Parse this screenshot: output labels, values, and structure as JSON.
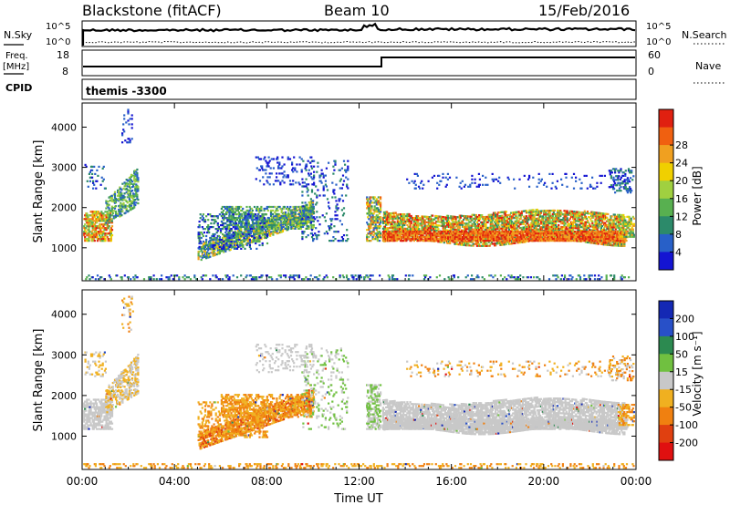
{
  "header": {
    "station": "Blackstone (fitACF)",
    "beam": "Beam 10",
    "date": "15/Feb/2016"
  },
  "left_labels": {
    "nsky": "N.Sky",
    "freq": "Freq.",
    "mhz": "[MHz]",
    "cpid": "CPID"
  },
  "right_labels": {
    "nsearch": "N.Search",
    "nave": "Nave"
  },
  "cpid_text": "themis -3300",
  "power_colorbar": {
    "title": "Power [dB]",
    "ticks": [
      "4",
      "8",
      "12",
      "16",
      "20",
      "24",
      "28"
    ],
    "colors": [
      "#1414d2",
      "#2860c8",
      "#2c8a6a",
      "#58b050",
      "#a0d040",
      "#f0d000",
      "#f0a020",
      "#f06010",
      "#e02010"
    ]
  },
  "velocity_colorbar": {
    "title": "Velocity [m s⁻¹]",
    "ticks": [
      "200",
      "100",
      "50",
      "15",
      "-15",
      "-50",
      "-100",
      "-200"
    ],
    "colors": [
      "#1428b4",
      "#2850c8",
      "#2c8a50",
      "#70c040",
      "#c8c8c8",
      "#f0b020",
      "#f08010",
      "#e04010",
      "#e01010"
    ]
  },
  "chart_data": [
    {
      "type": "line",
      "panel": "sky/search noise",
      "left_ticks": [
        "10^5",
        "10^0"
      ],
      "right_ticks": [
        "10^5",
        "10^0"
      ],
      "series": [
        {
          "name": "N.Sky"
        },
        {
          "name": "N.Search"
        }
      ]
    },
    {
      "type": "line",
      "panel": "frequency / nave",
      "left_ticks": [
        "18",
        "8"
      ],
      "right_ticks": [
        "60",
        "0"
      ],
      "series": [
        {
          "name": "Freq."
        },
        {
          "name": "Nave"
        }
      ]
    },
    {
      "type": "heatmap",
      "panel": "power",
      "xlabel": "",
      "ylabel": "Slant Range [km]",
      "ylim": [
        180,
        4600
      ],
      "y_ticks": [
        "1000",
        "2000",
        "3000",
        "4000"
      ],
      "x_ticks": [
        "00:00",
        "04:00",
        "08:00",
        "12:00",
        "16:00",
        "20:00",
        "00:00"
      ]
    },
    {
      "type": "heatmap",
      "panel": "velocity",
      "xlabel": "Time UT",
      "ylabel": "Slant Range [km]",
      "ylim": [
        180,
        4600
      ],
      "y_ticks": [
        "1000",
        "2000",
        "3000",
        "4000"
      ],
      "x_ticks": [
        "00:00",
        "04:00",
        "08:00",
        "12:00",
        "16:00",
        "20:00",
        "00:00"
      ]
    }
  ]
}
